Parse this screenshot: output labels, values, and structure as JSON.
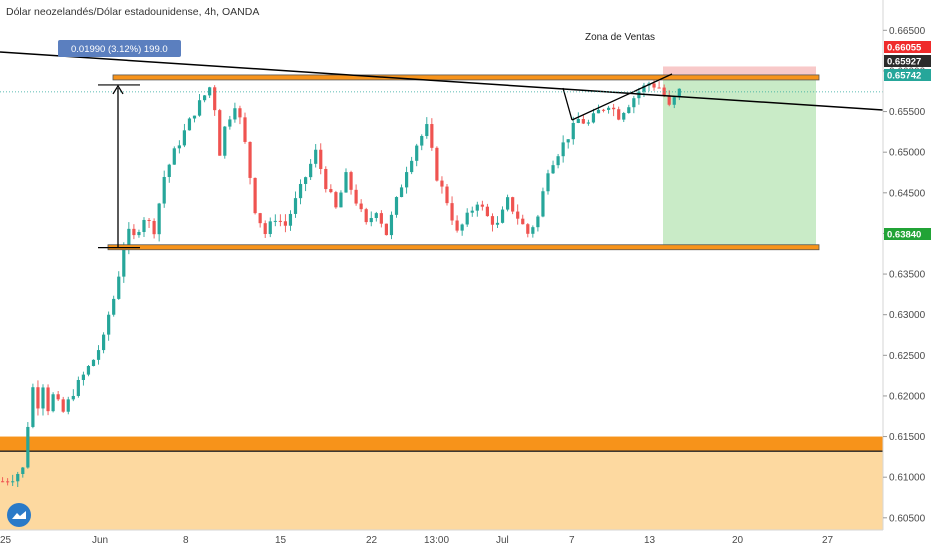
{
  "header": {
    "title": "Dólar neozelandés/Dólar estadounidense, 4h, OANDA"
  },
  "annotations": {
    "sell_zone": "Zona de Ventas",
    "measure_label": "0.01990 (3.12%) 199.0"
  },
  "price_badges": [
    {
      "label": "0.66055",
      "value": 0.66055,
      "color": "#ef2b2b"
    },
    {
      "label": "0.65927",
      "value": 0.65927,
      "color": "#2b2b2b"
    },
    {
      "label": "0.65742",
      "value": 0.65742,
      "color": "#26a69a"
    },
    {
      "label": "0.63840",
      "value": 0.6384,
      "color": "#21a336"
    }
  ],
  "colors": {
    "up": "#26a69a",
    "down": "#ef5350",
    "orange": "#f7931a",
    "orange_zone": "#fdd9a0",
    "target_green": "#c9ebc7",
    "stop_red": "#f8c9c9",
    "measure_blue": "#5b7fbf"
  },
  "chart_data": {
    "type": "candlestick",
    "title": "Dólar neozelandés/Dólar estadounidense, 4h, OANDA",
    "ylim": [
      0.6035,
      0.6675
    ],
    "y_ticks": [
      "0.66500",
      "0.66000",
      "0.65500",
      "0.65000",
      "0.64500",
      "0.64000",
      "0.63500",
      "0.63000",
      "0.62500",
      "0.62000",
      "0.61500",
      "0.61000",
      "0.60500"
    ],
    "x_ticks": [
      "25",
      "Jun",
      "8",
      "15",
      "22",
      "13:00",
      "Jul",
      "7",
      "13",
      "20",
      "27"
    ],
    "close_path": [
      [
        0,
        0.6095
      ],
      [
        2,
        0.61
      ],
      [
        4,
        0.611
      ],
      [
        5,
        0.6165
      ],
      [
        6,
        0.621
      ],
      [
        7,
        0.619
      ],
      [
        8,
        0.6215
      ],
      [
        9,
        0.6185
      ],
      [
        10,
        0.62
      ],
      [
        12,
        0.618
      ],
      [
        14,
        0.6205
      ],
      [
        16,
        0.6225
      ],
      [
        18,
        0.6245
      ],
      [
        20,
        0.627
      ],
      [
        21,
        0.63
      ],
      [
        22,
        0.632
      ],
      [
        23,
        0.635
      ],
      [
        24,
        0.6385
      ],
      [
        25,
        0.64
      ],
      [
        26,
        0.6395
      ],
      [
        28,
        0.642
      ],
      [
        30,
        0.6405
      ],
      [
        32,
        0.647
      ],
      [
        34,
        0.65
      ],
      [
        36,
        0.6525
      ],
      [
        38,
        0.655
      ],
      [
        40,
        0.657
      ],
      [
        41,
        0.658
      ],
      [
        42,
        0.6555
      ],
      [
        43,
        0.65
      ],
      [
        44,
        0.653
      ],
      [
        46,
        0.656
      ],
      [
        47,
        0.654
      ],
      [
        48,
        0.651
      ],
      [
        49,
        0.647
      ],
      [
        50,
        0.643
      ],
      [
        52,
        0.64
      ],
      [
        54,
        0.642
      ],
      [
        56,
        0.641
      ],
      [
        58,
        0.644
      ],
      [
        60,
        0.647
      ],
      [
        62,
        0.65
      ],
      [
        64,
        0.646
      ],
      [
        66,
        0.643
      ],
      [
        68,
        0.647
      ],
      [
        70,
        0.644
      ],
      [
        72,
        0.641
      ],
      [
        74,
        0.643
      ],
      [
        76,
        0.64
      ],
      [
        78,
        0.644
      ],
      [
        80,
        0.648
      ],
      [
        82,
        0.651
      ],
      [
        84,
        0.653
      ],
      [
        85,
        0.65
      ],
      [
        86,
        0.647
      ],
      [
        88,
        0.644
      ],
      [
        90,
        0.64
      ],
      [
        92,
        0.642
      ],
      [
        94,
        0.644
      ],
      [
        96,
        0.642
      ],
      [
        98,
        0.641
      ],
      [
        100,
        0.644
      ],
      [
        102,
        0.642
      ],
      [
        104,
        0.64
      ],
      [
        106,
        0.642
      ],
      [
        107,
        0.645
      ],
      [
        108,
        0.648
      ],
      [
        110,
        0.65
      ],
      [
        112,
        0.652
      ],
      [
        114,
        0.654
      ],
      [
        116,
        0.6535
      ],
      [
        118,
        0.655
      ],
      [
        120,
        0.656
      ],
      [
        122,
        0.6545
      ],
      [
        124,
        0.656
      ],
      [
        126,
        0.6575
      ],
      [
        128,
        0.6585
      ],
      [
        130,
        0.658
      ],
      [
        131,
        0.657
      ],
      [
        132,
        0.6555
      ],
      [
        133,
        0.6565
      ],
      [
        134,
        0.6575
      ]
    ],
    "horizontal_zones": [
      {
        "name": "resistance",
        "value": 0.6592
      },
      {
        "name": "support",
        "value": 0.6383
      },
      {
        "name": "lower_zone",
        "from": 0.6132,
        "to": 0.615
      }
    ],
    "position": {
      "entry": 0.65927,
      "stop": 0.66055,
      "target": 0.6384
    },
    "measure": {
      "from": 0.6385,
      "to": 0.6584,
      "label": "0.01990 (3.12%) 199.0"
    }
  }
}
